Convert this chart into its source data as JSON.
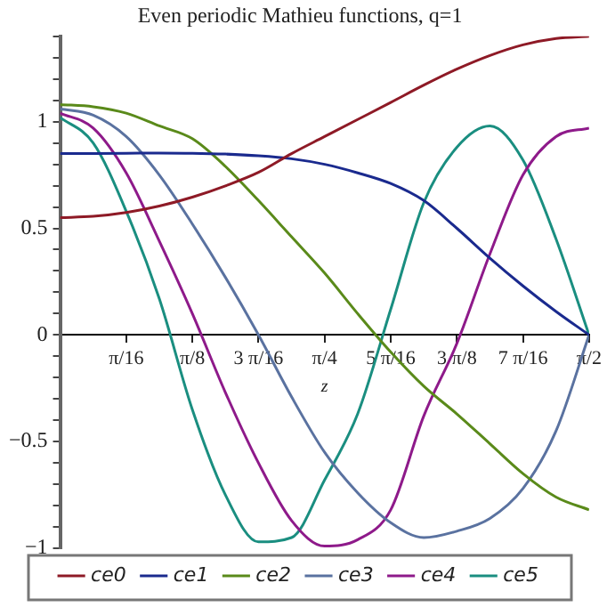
{
  "chart_data": {
    "type": "line",
    "title": "Even periodic Mathieu functions, q=1",
    "xlabel": "z",
    "x": [
      0,
      0.0982,
      0.1963,
      0.2945,
      0.3927,
      0.4909,
      0.589,
      0.6872,
      0.7854,
      0.8836,
      0.9817,
      1.0799,
      1.1781,
      1.2763,
      1.3744,
      1.4726,
      1.5708
    ],
    "series": [
      {
        "name": "ce0",
        "color": "#8e1a26",
        "values": [
          0.55,
          0.556,
          0.574,
          0.604,
          0.646,
          0.699,
          0.762,
          0.85,
          0.93,
          1.01,
          1.09,
          1.171,
          1.246,
          1.31,
          1.36,
          1.39,
          1.4
        ]
      },
      {
        "name": "ce1",
        "color": "#1a2a8e",
        "values": [
          0.85,
          0.851,
          0.852,
          0.853,
          0.852,
          0.848,
          0.84,
          0.826,
          0.8,
          0.76,
          0.71,
          0.63,
          0.5,
          0.36,
          0.23,
          0.11,
          0
        ]
      },
      {
        "name": "ce2",
        "color": "#5a8a1a",
        "values": [
          1.08,
          1.07,
          1.04,
          0.98,
          0.92,
          0.79,
          0.63,
          0.46,
          0.29,
          0.1,
          -0.08,
          -0.24,
          -0.37,
          -0.51,
          -0.65,
          -0.76,
          -0.82
        ]
      },
      {
        "name": "ce3",
        "color": "#5a72a0",
        "values": [
          1.06,
          1.03,
          0.93,
          0.75,
          0.52,
          0.27,
          0,
          -0.29,
          -0.55,
          -0.74,
          -0.88,
          -0.95,
          -0.92,
          -0.86,
          -0.72,
          -0.45,
          0
        ]
      },
      {
        "name": "ce4",
        "color": "#8e1a8a",
        "values": [
          1.04,
          0.97,
          0.76,
          0.44,
          0.1,
          -0.27,
          -0.6,
          -0.87,
          -0.99,
          -0.96,
          -0.82,
          -0.38,
          -0.04,
          0.38,
          0.75,
          0.93,
          0.97
        ]
      },
      {
        "name": "ce5",
        "color": "#1a8e80",
        "values": [
          1.02,
          0.9,
          0.58,
          0.17,
          -0.35,
          -0.75,
          -0.97,
          -0.95,
          -0.68,
          -0.37,
          0.12,
          0.62,
          0.88,
          0.98,
          0.82,
          0.45,
          0
        ]
      }
    ],
    "xlim": [
      0,
      1.5708
    ],
    "xticks": [
      {
        "value": 0.19635,
        "label": "π/16"
      },
      {
        "value": 0.3927,
        "label": "π/8"
      },
      {
        "value": 0.58905,
        "label": "3 π/16"
      },
      {
        "value": 0.7854,
        "label": "π/4"
      },
      {
        "value": 0.98175,
        "label": "5 π/16"
      },
      {
        "value": 1.1781,
        "label": "3 π/8"
      },
      {
        "value": 1.37445,
        "label": "7 π/16"
      },
      {
        "value": 1.5708,
        "label": "π/2"
      }
    ],
    "ylim": [
      -1,
      1.4
    ],
    "yticks": [
      {
        "value": -1,
        "label": "−1"
      },
      {
        "value": -0.9,
        "label": null
      },
      {
        "value": -0.8,
        "label": null
      },
      {
        "value": -0.7,
        "label": null
      },
      {
        "value": -0.6,
        "label": null
      },
      {
        "value": -0.5,
        "label": "−0.5"
      },
      {
        "value": -0.4,
        "label": null
      },
      {
        "value": -0.3,
        "label": null
      },
      {
        "value": -0.2,
        "label": null
      },
      {
        "value": -0.1,
        "label": null
      },
      {
        "value": 0,
        "label": "0"
      },
      {
        "value": 0.1,
        "label": null
      },
      {
        "value": 0.2,
        "label": null
      },
      {
        "value": 0.3,
        "label": null
      },
      {
        "value": 0.4,
        "label": null
      },
      {
        "value": 0.5,
        "label": "0.5"
      },
      {
        "value": 0.6,
        "label": null
      },
      {
        "value": 0.7,
        "label": null
      },
      {
        "value": 0.8,
        "label": null
      },
      {
        "value": 0.9,
        "label": null
      },
      {
        "value": 1,
        "label": "1"
      },
      {
        "value": 1.1,
        "label": null
      },
      {
        "value": 1.2,
        "label": null
      },
      {
        "value": 1.3,
        "label": null
      },
      {
        "value": 1.4,
        "label": null
      }
    ],
    "grid": false,
    "legend": "bottom",
    "marker": "none",
    "line_style": "solid"
  }
}
